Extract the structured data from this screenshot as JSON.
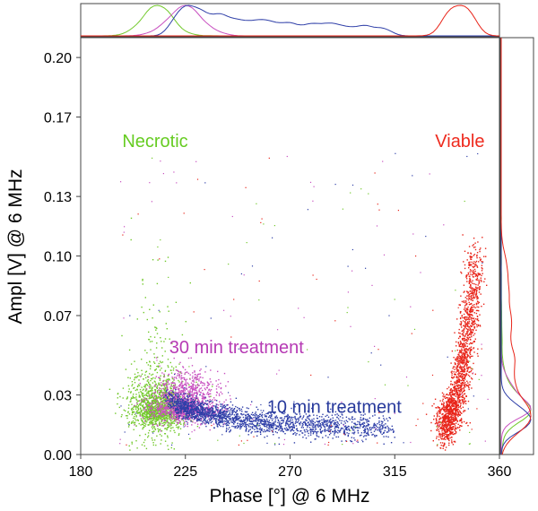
{
  "chart_data": {
    "type": "scatter",
    "title": "",
    "xlabel": "Phase [°] @ 6 MHz",
    "ylabel": "Ampl [V] @ 6 MHz",
    "xlim": [
      180,
      360
    ],
    "ylim": [
      0,
      0.21
    ],
    "x_ticks": [
      "180",
      "225",
      "270",
      "315",
      "360"
    ],
    "x_tick_values": [
      180,
      225,
      270,
      315,
      360
    ],
    "y_ticks": [
      "0.20",
      "0.17",
      "0.13",
      "0.10",
      "0.07",
      "0.03",
      "0.00"
    ],
    "y_tick_values": [
      0.2,
      0.17,
      0.13,
      0.1,
      0.07,
      0.03,
      0.0
    ],
    "grid": false,
    "marginal_histograms": true,
    "annotations": [
      {
        "text": "Necrotic",
        "color": "#66cc22",
        "x": 212,
        "y": 0.155
      },
      {
        "text": "Viable",
        "color": "#ee2a1e",
        "x": 343,
        "y": 0.155
      },
      {
        "text": "30 min treatment",
        "color": "#b63ab4",
        "x": 247,
        "y": 0.051
      },
      {
        "text": "10 min treatment",
        "color": "#283a9c",
        "x": 289,
        "y": 0.021
      }
    ],
    "series": [
      {
        "color": "#72c92b",
        "phase_center": 213,
        "phase_spread": 6,
        "ampl_center": 0.025,
        "ampl_spread": 0.006
      },
      {
        "color": "#c850c0",
        "phase_center": 225,
        "phase_spread": 7,
        "ampl_center": 0.024,
        "ampl_spread": 0.006
      },
      {
        "color": "#2f3fa8",
        "phase_center": 262,
        "phase_spread": 25,
        "ampl_center": 0.015,
        "ampl_spread": 0.004
      },
      {
        "color": "#e8251a",
        "phase_center": 345,
        "phase_spread": 5,
        "ampl_center": 0.04,
        "ampl_spread": 0.015
      }
    ]
  }
}
